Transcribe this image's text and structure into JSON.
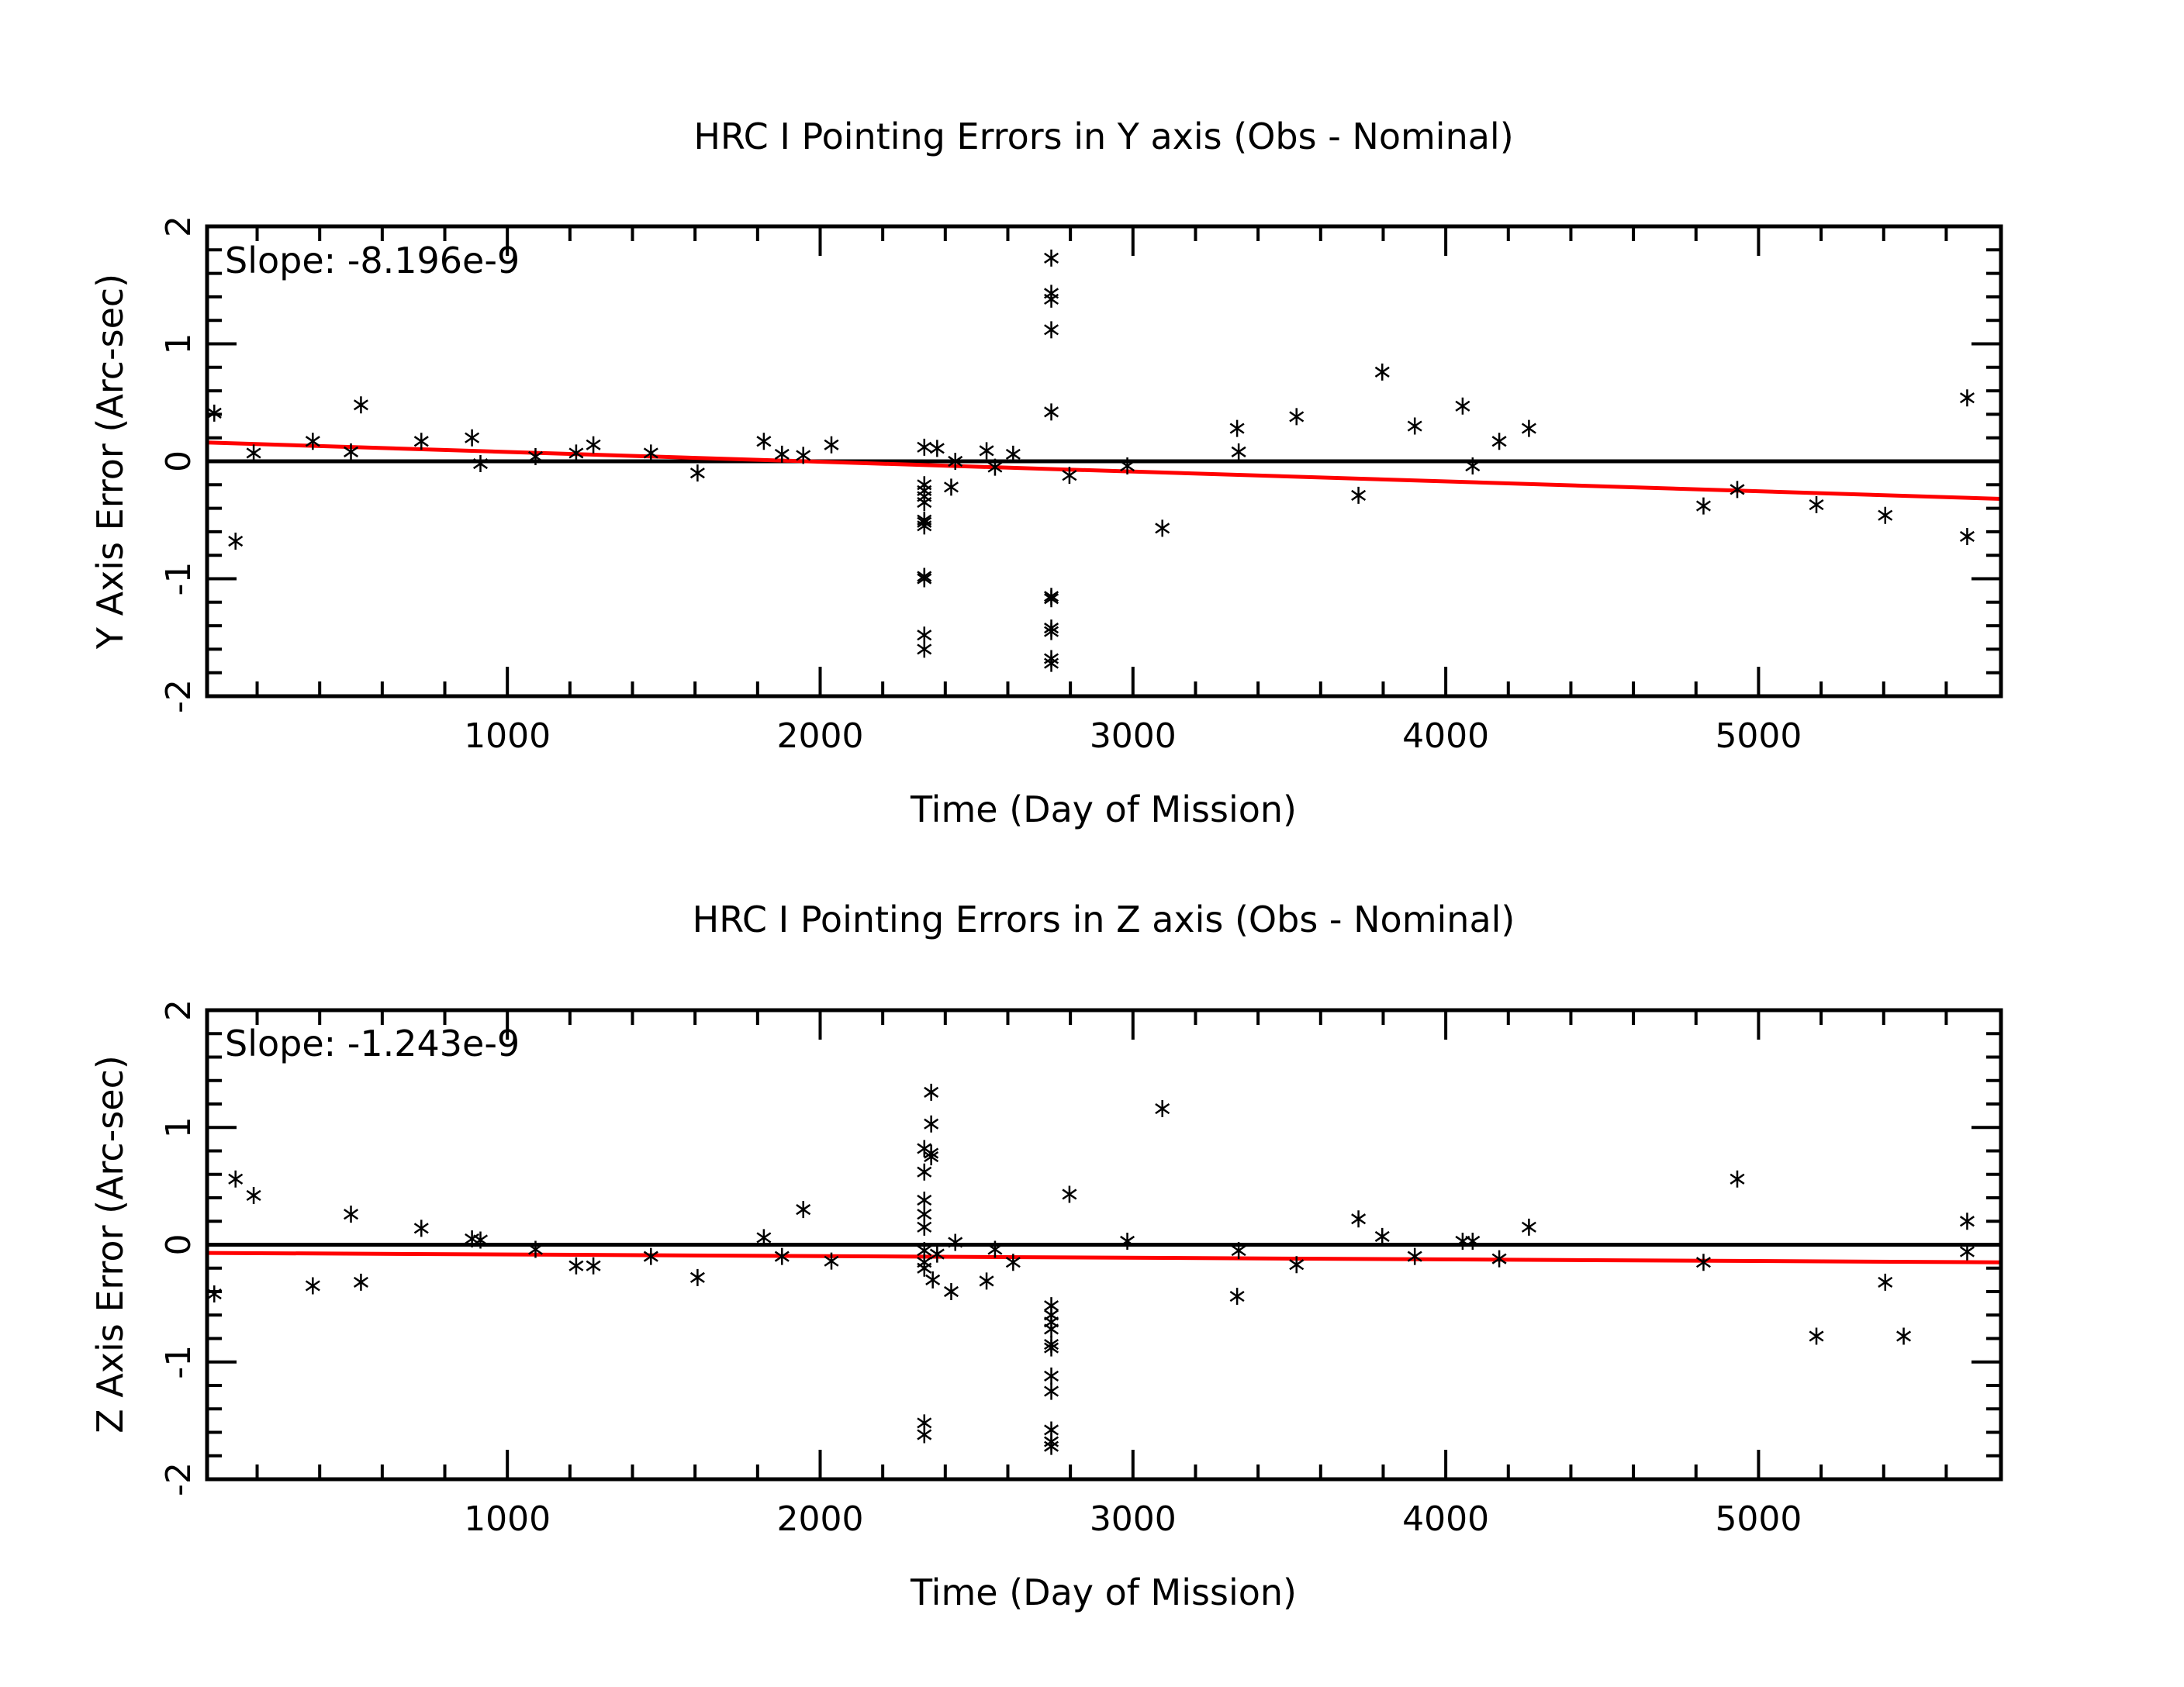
{
  "colors": {
    "fit": "#ff0000",
    "axis": "#000000",
    "points": "#000000"
  },
  "chart_data": [
    {
      "type": "scatter",
      "title": "HRC I Pointing Errors in Y axis (Obs - Nominal)",
      "xlabel": "Time (Day of Mission)",
      "ylabel": "Y Axis Error (Arc-sec)",
      "xlim": [
        40,
        5775
      ],
      "ylim": [
        -2,
        2
      ],
      "xticks": [
        1000,
        2000,
        3000,
        4000,
        5000
      ],
      "yticks": [
        -2,
        -1,
        0,
        1,
        2
      ],
      "annotation": "Slope: -8.196e-9",
      "zero_line": 0,
      "fit_line": {
        "x": [
          40,
          5775
        ],
        "y": [
          0.16,
          -0.32
        ]
      },
      "x": [
        63,
        131,
        189,
        378,
        500,
        532,
        725,
        887,
        914,
        1090,
        1220,
        1275,
        1459,
        1608,
        1820,
        1878,
        1946,
        2036,
        2333,
        2333,
        2333,
        2333,
        2333,
        2333,
        2333,
        2333,
        2333,
        2333,
        2333,
        2333,
        2374,
        2419,
        2432,
        2532,
        2559,
        2617,
        2739,
        2739,
        2739,
        2739,
        2739,
        2739,
        2739,
        2739,
        2739,
        2739,
        2739,
        2797,
        2982,
        3094,
        3333,
        3338,
        3523,
        3721,
        3797,
        3901,
        4054,
        4086,
        4171,
        4266,
        4824,
        4932,
        5185,
        5405,
        5667,
        5667
      ],
      "y": [
        0.41,
        -0.68,
        0.07,
        0.17,
        0.08,
        0.48,
        0.17,
        0.2,
        -0.02,
        0.04,
        0.07,
        0.14,
        0.07,
        -0.1,
        0.17,
        0.06,
        0.05,
        0.14,
        0.12,
        -0.2,
        -0.25,
        -0.3,
        -0.35,
        -0.5,
        -0.52,
        -0.55,
        -0.98,
        -1.0,
        -1.48,
        -1.6,
        0.11,
        -0.22,
        0.0,
        0.09,
        -0.05,
        0.06,
        1.73,
        1.43,
        1.38,
        1.12,
        0.42,
        -1.15,
        -1.17,
        -1.42,
        -1.45,
        -1.68,
        -1.72,
        -0.12,
        -0.04,
        -0.57,
        0.28,
        0.08,
        0.38,
        -0.29,
        0.76,
        0.3,
        0.47,
        -0.04,
        0.17,
        0.28,
        -0.38,
        -0.24,
        -0.37,
        -0.46,
        0.54,
        -0.64
      ]
    },
    {
      "type": "scatter",
      "title": "HRC I Pointing Errors in  Z axis (Obs - Nominal)",
      "xlabel": "Time (Day of Mission)",
      "ylabel": "Z Axis Error (Arc-sec)",
      "xlim": [
        40,
        5775
      ],
      "ylim": [
        -2,
        2
      ],
      "xticks": [
        1000,
        2000,
        3000,
        4000,
        5000
      ],
      "yticks": [
        -2,
        -1,
        0,
        1,
        2
      ],
      "annotation": "Slope: -1.243e-9",
      "zero_line": 0,
      "fit_line": {
        "x": [
          40,
          5775
        ],
        "y": [
          -0.07,
          -0.15
        ]
      },
      "x": [
        63,
        131,
        189,
        378,
        500,
        532,
        725,
        887,
        914,
        1090,
        1220,
        1275,
        1459,
        1608,
        1820,
        1878,
        1946,
        2036,
        2333,
        2333,
        2333,
        2333,
        2333,
        2333,
        2333,
        2333,
        2333,
        2333,
        2355,
        2355,
        2355,
        2355,
        2360,
        2374,
        2419,
        2432,
        2532,
        2559,
        2617,
        2739,
        2739,
        2739,
        2739,
        2739,
        2739,
        2739,
        2739,
        2739,
        2739,
        2739,
        2797,
        2982,
        3094,
        3333,
        3338,
        3523,
        3721,
        3797,
        3901,
        4054,
        4086,
        4171,
        4266,
        4824,
        4932,
        5185,
        5405,
        5464,
        5667,
        5667
      ],
      "y": [
        -0.42,
        0.56,
        0.42,
        -0.35,
        0.26,
        -0.32,
        0.14,
        0.05,
        0.04,
        -0.04,
        -0.18,
        -0.18,
        -0.1,
        -0.28,
        0.06,
        -0.1,
        0.3,
        -0.14,
        0.82,
        0.62,
        0.38,
        0.26,
        0.15,
        -0.05,
        -0.15,
        -0.2,
        -1.52,
        -1.62,
        1.3,
        1.03,
        0.78,
        0.75,
        -0.3,
        -0.08,
        -0.4,
        0.02,
        -0.31,
        -0.04,
        -0.15,
        -0.52,
        -0.6,
        -0.66,
        -0.72,
        -0.85,
        -0.88,
        -1.12,
        -1.25,
        -1.58,
        -1.68,
        -1.72,
        0.43,
        0.03,
        1.16,
        -0.44,
        -0.05,
        -0.17,
        0.22,
        0.07,
        -0.1,
        0.03,
        0.03,
        -0.12,
        0.15,
        -0.15,
        0.56,
        -0.78,
        -0.32,
        -0.78,
        0.2,
        -0.06
      ]
    }
  ]
}
